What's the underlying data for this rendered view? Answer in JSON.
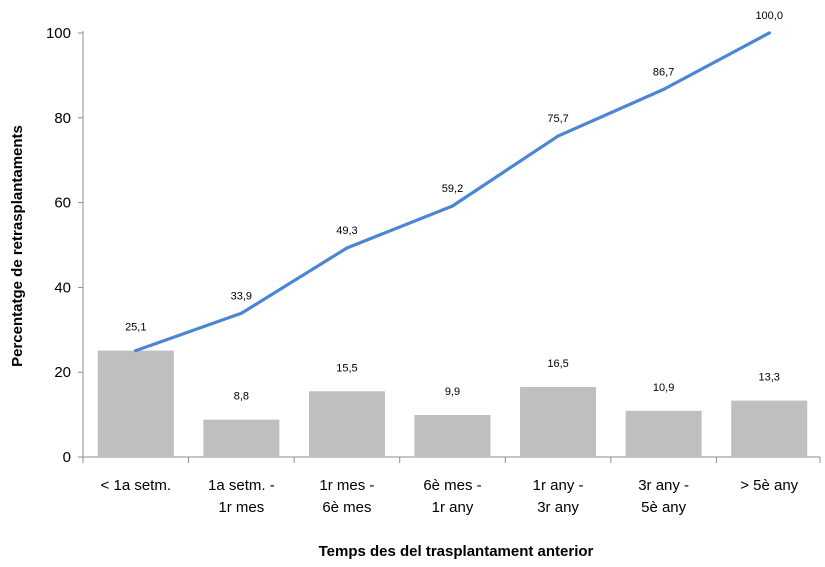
{
  "chart_data": {
    "type": "bar",
    "categories": [
      [
        "< 1a setm."
      ],
      [
        "1a setm. -",
        "1r mes"
      ],
      [
        "1r mes -",
        "6è mes"
      ],
      [
        "6è mes  -",
        "1r any"
      ],
      [
        "1r any -",
        "3r any"
      ],
      [
        "3r any -",
        "5è any"
      ],
      [
        "> 5è any"
      ]
    ],
    "series": [
      {
        "type": "bar",
        "values": [
          25.1,
          8.8,
          15.5,
          9.9,
          16.5,
          10.9,
          13.3
        ],
        "labels": [
          "25,1",
          "8,8",
          "15,5",
          "9,9",
          "16,5",
          "10,9",
          "13,3"
        ],
        "color": "#bfbfbf"
      },
      {
        "type": "line",
        "values": [
          25.1,
          33.9,
          49.3,
          59.2,
          75.7,
          86.7,
          100.0
        ],
        "labels": [
          "25,1",
          "33,9",
          "49,3",
          "59,2",
          "75,7",
          "86,7",
          "100,0"
        ],
        "color": "#4a86d4"
      }
    ],
    "ylabel": "Percentatge de retrasplantaments",
    "xlabel": "Temps des del trasplantament anterior",
    "ylim": [
      0,
      100
    ],
    "yticks": [
      0,
      20,
      40,
      60,
      80,
      100
    ],
    "grid": false,
    "legend": "none"
  }
}
